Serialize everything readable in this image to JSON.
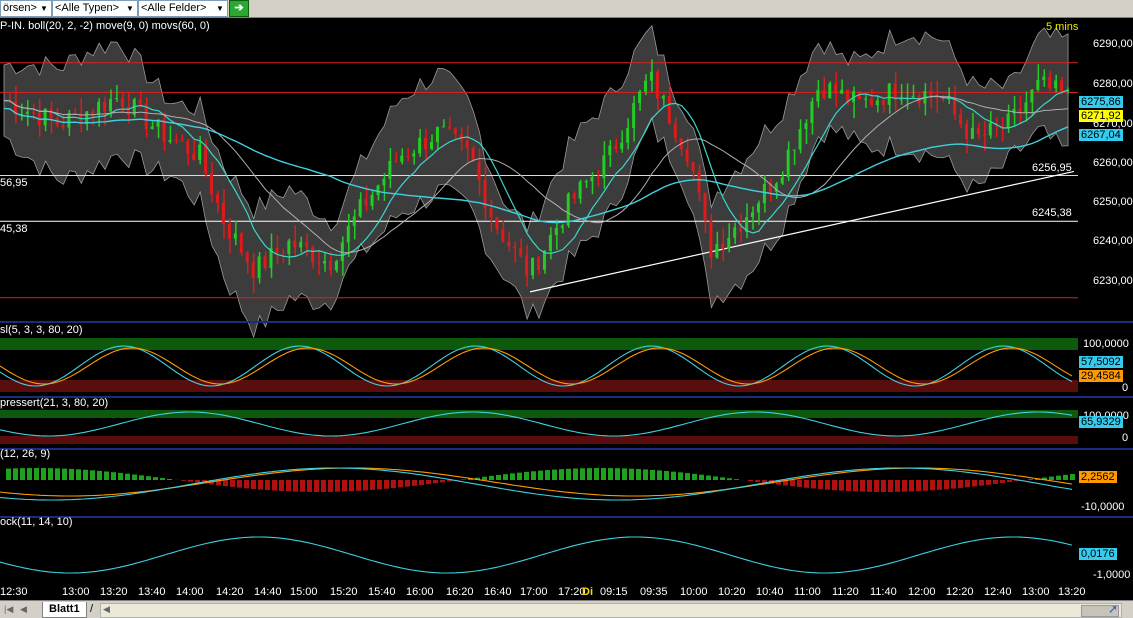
{
  "toolbar": {
    "combo_boersen": "örsen>",
    "combo_typen": "<Alle Typen>",
    "combo_felder": "<Alle Felder>",
    "go_icon": "arrow-right-icon"
  },
  "chart": {
    "main_title": "P-IN. boll(20, 2, -2) move(9, 0) movs(60, 0)",
    "interval": "5 mins",
    "price_ticks": [
      "6290,00",
      "6280,00",
      "6270,00",
      "6260,00",
      "6250,00",
      "6240,00",
      "6230,00"
    ],
    "price_badges": [
      "6275,86",
      "6271,92",
      "6267,04"
    ],
    "level_labels_right": [
      "6256,95",
      "6245,38"
    ],
    "level_labels_left": [
      "56,95",
      "45,38"
    ],
    "panel2_title": "sl(5, 3, 3, 80, 20)",
    "panel2_ticks": [
      "100,0000",
      "0"
    ],
    "panel2_badges": [
      "57,5092",
      "29,4584"
    ],
    "panel3_title": "pressert(21, 3, 80, 20)",
    "panel3_ticks": [
      "100,0000",
      "0"
    ],
    "panel3_badge": "65,9329",
    "panel4_title": "(12, 26, 9)",
    "panel4_ticks": [
      "-10,0000"
    ],
    "panel4_badge": "2,2562",
    "panel5_title": "ock(11, 14, 10)",
    "panel5_ticks": [
      "-1,0000"
    ],
    "panel5_badge": "0,0176",
    "time_labels": [
      "12:30",
      "13:00",
      "13:20",
      "13:40",
      "14:00",
      "14:20",
      "14:40",
      "15:00",
      "15:20",
      "15:40",
      "16:00",
      "16:20",
      "16:40",
      "17:00",
      "17:20",
      "Di",
      "09:15",
      "09:35",
      "10:00",
      "10:20",
      "10:40",
      "11:00",
      "11:20",
      "11:40",
      "12:00",
      "12:20",
      "12:40",
      "13:00",
      "13:20"
    ]
  },
  "statusbar": {
    "sheet_tab": "Blatt1",
    "tab_sep": "/"
  },
  "colors": {
    "up": "#22cc22",
    "down": "#e01a1a",
    "band": "#3a3a3a",
    "cyan": "#3fd0e0",
    "badge_cyan": "#33ccee",
    "badge_yellow": "#ffff00",
    "badge_orange": "#ff9900"
  }
}
